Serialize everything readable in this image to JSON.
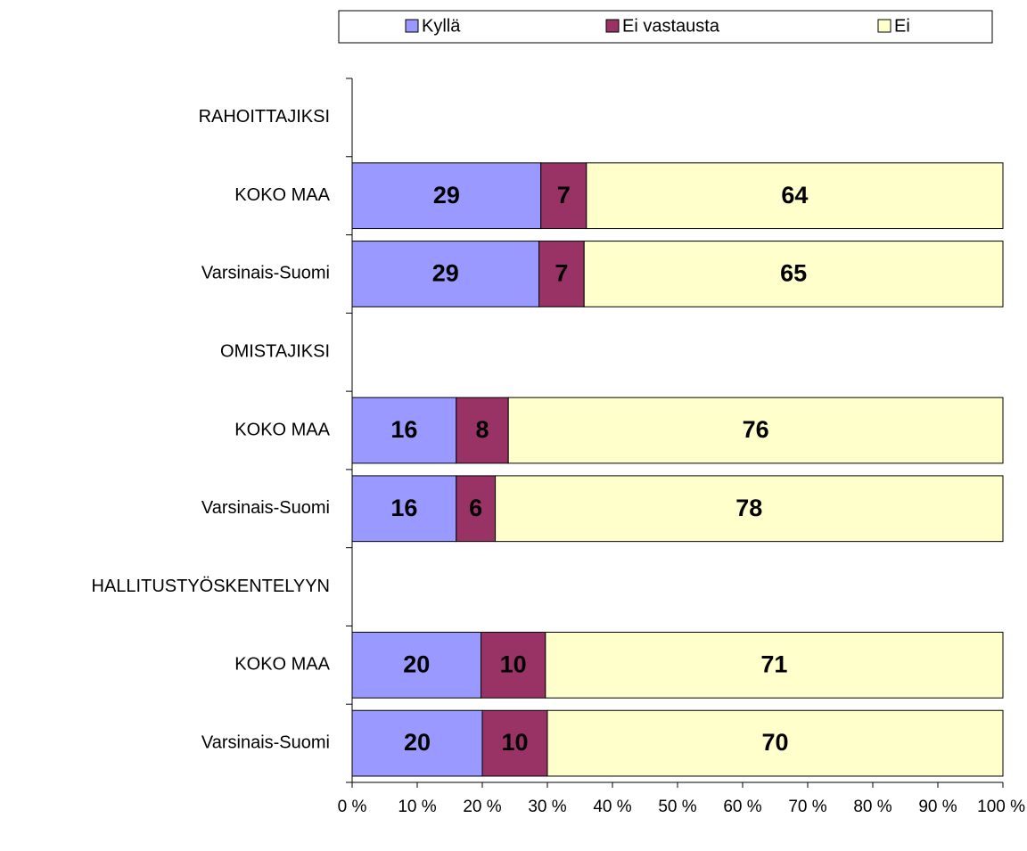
{
  "chart_data": {
    "type": "bar",
    "orientation": "horizontal",
    "stacked": "percent",
    "categories": [
      "RAHOITTAJIKSI",
      "KOKO MAA",
      "Varsinais-Suomi",
      "OMISTAJIKSI",
      "KOKO MAA",
      "Varsinais-Suomi",
      "HALLITUSTYÖSKENTELYYN",
      "KOKO MAA",
      "Varsinais-Suomi"
    ],
    "series": [
      {
        "name": "Kyllä",
        "color": "#9999ff",
        "values": [
          null,
          29,
          29,
          null,
          16,
          16,
          null,
          20,
          20
        ]
      },
      {
        "name": "Ei vastausta",
        "color": "#993366",
        "values": [
          null,
          7,
          7,
          null,
          8,
          6,
          null,
          10,
          10
        ]
      },
      {
        "name": "Ei",
        "color": "#ffffcc",
        "values": [
          null,
          64,
          65,
          null,
          76,
          78,
          null,
          71,
          70
        ]
      }
    ],
    "xlim": [
      0,
      100
    ],
    "xticks": [
      {
        "value": 0,
        "label": "0 %"
      },
      {
        "value": 10,
        "label": "10 %"
      },
      {
        "value": 20,
        "label": "20 %"
      },
      {
        "value": 30,
        "label": "30 %"
      },
      {
        "value": 40,
        "label": "40 %"
      },
      {
        "value": 50,
        "label": "50 %"
      },
      {
        "value": 60,
        "label": "60 %"
      },
      {
        "value": 70,
        "label": "70 %"
      },
      {
        "value": 80,
        "label": "80 %"
      },
      {
        "value": 90,
        "label": "90 %"
      },
      {
        "value": 100,
        "label": "100 %"
      }
    ],
    "legend": "top",
    "grid": false
  }
}
